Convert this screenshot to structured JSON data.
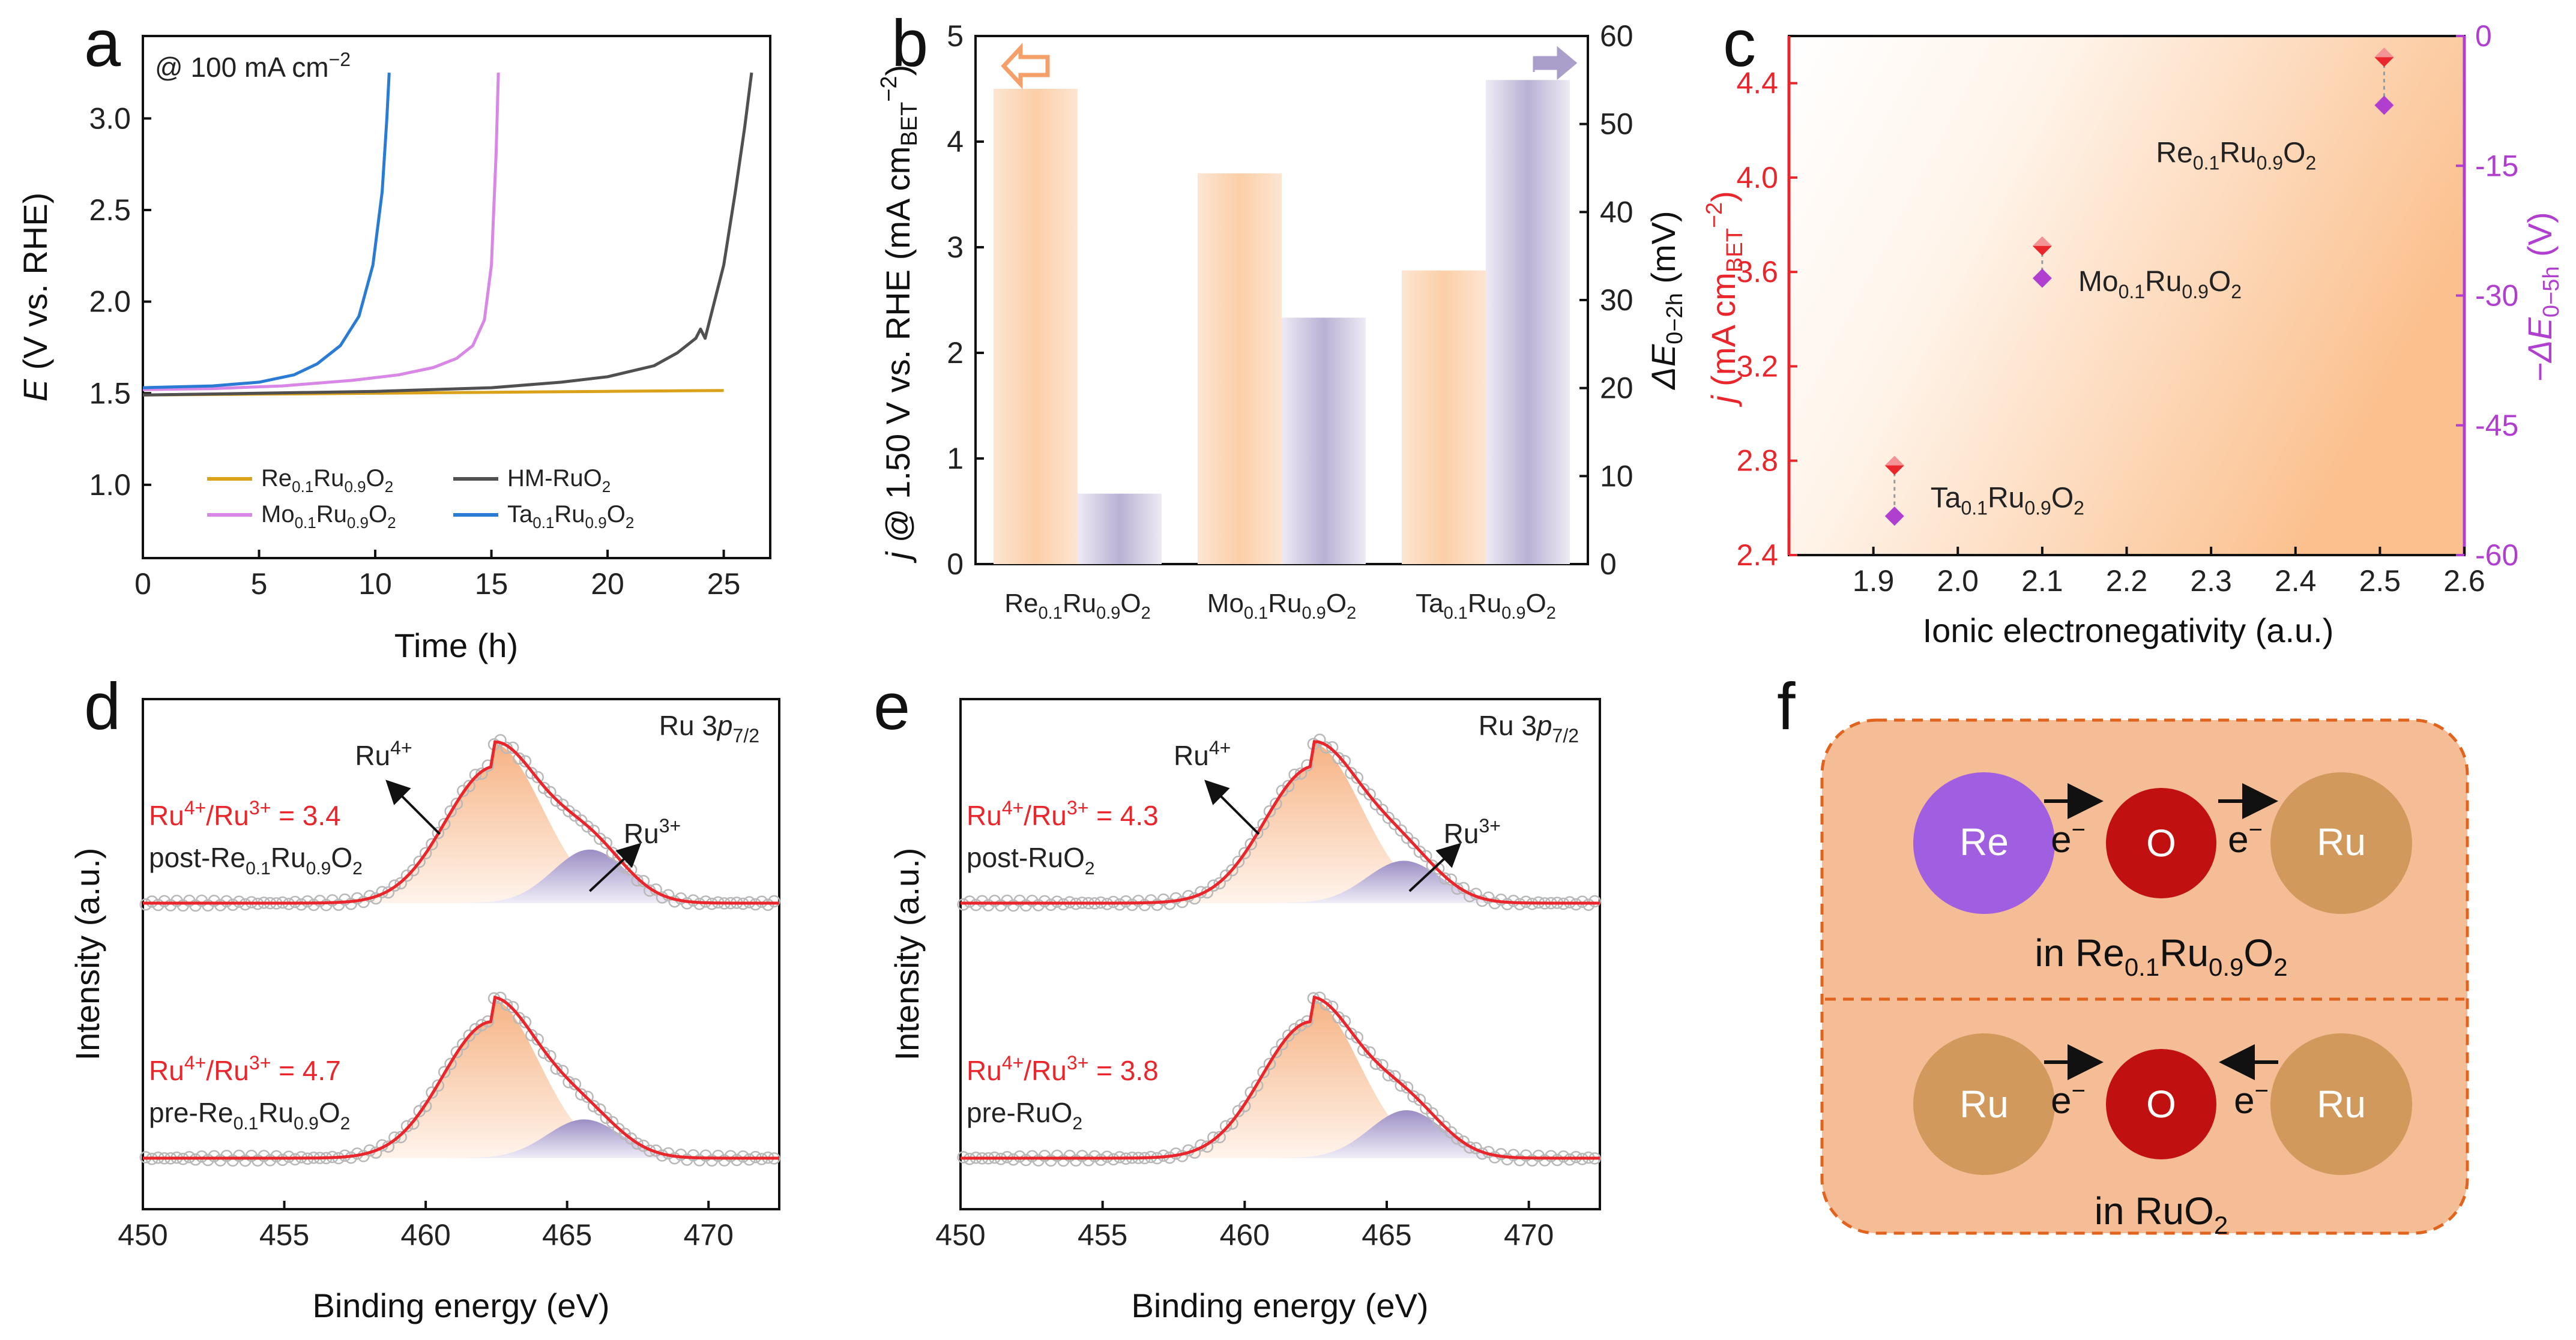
{
  "panel_labels": {
    "a": "a",
    "b": "b",
    "c": "c",
    "d": "d",
    "e": "e",
    "f": "f"
  },
  "chart_data": [
    {
      "id": "a",
      "type": "line",
      "annotation_main": "@ 100 mA cm",
      "annotation_sup": "−2",
      "xlabel": "Time (h)",
      "ylabel_italic": "E",
      "ylabel_rest": " (V vs. RHE)",
      "xlim": [
        0,
        27
      ],
      "ylim": [
        0.6,
        3.45
      ],
      "xticks": [
        0,
        5,
        10,
        15,
        20,
        25
      ],
      "yticks": [
        1.0,
        1.5,
        2.0,
        2.5,
        3.0
      ],
      "series": [
        {
          "name": "Re0.1Ru0.9O2",
          "label": [
            "Re",
            "0.1",
            "Ru",
            "0.9",
            "O",
            "2"
          ],
          "color": "#d9a21a",
          "x": [
            0,
            5,
            10,
            15,
            20,
            25
          ],
          "y": [
            1.49,
            1.495,
            1.5,
            1.505,
            1.51,
            1.515
          ]
        },
        {
          "name": "HM-RuO2",
          "label": [
            "HM-RuO",
            "",
            "",
            "",
            "",
            "2"
          ],
          "color": "#505050",
          "x": [
            0,
            5,
            10,
            15,
            18,
            20,
            22,
            23,
            23.8,
            24,
            24.2,
            24.5,
            25,
            25.5,
            25.9,
            26.2
          ],
          "y": [
            1.49,
            1.5,
            1.51,
            1.53,
            1.56,
            1.59,
            1.65,
            1.72,
            1.8,
            1.85,
            1.8,
            1.95,
            2.2,
            2.6,
            2.95,
            3.25
          ]
        },
        {
          "name": "Mo0.1Ru0.9O2",
          "label": [
            "Mo",
            "0.1",
            "Ru",
            "0.9",
            "O",
            "2"
          ],
          "color": "#d887e6",
          "x": [
            0,
            3,
            6,
            9,
            11,
            12.5,
            13.5,
            14.2,
            14.7,
            15.0,
            15.2,
            15.3
          ],
          "y": [
            1.52,
            1.525,
            1.54,
            1.57,
            1.6,
            1.64,
            1.69,
            1.76,
            1.9,
            2.2,
            2.8,
            3.25
          ]
        },
        {
          "name": "Ta0.1Ru0.9O2",
          "label": [
            "Ta",
            "0.1",
            "Ru",
            "0.9",
            "O",
            "2"
          ],
          "color": "#2a7bd4",
          "x": [
            0,
            3,
            5,
            6.5,
            7.5,
            8.5,
            9.3,
            9.9,
            10.3,
            10.5,
            10.6
          ],
          "y": [
            1.53,
            1.54,
            1.56,
            1.6,
            1.66,
            1.76,
            1.92,
            2.2,
            2.6,
            3.0,
            3.25
          ]
        }
      ]
    },
    {
      "id": "b",
      "type": "bar",
      "categories": [
        [
          "Re",
          "0.1",
          "Ru",
          "0.9",
          "O",
          "2"
        ],
        [
          "Mo",
          "0.1",
          "Ru",
          "0.9",
          "O",
          "2"
        ],
        [
          "Ta",
          "0.1",
          "Ru",
          "0.9",
          "O",
          "2"
        ]
      ],
      "series": [
        {
          "name": "j @ 1.50 V vs. RHE",
          "axis": "left",
          "values": [
            4.5,
            3.7,
            2.78
          ],
          "color": "#f6b88a"
        },
        {
          "name": "ΔE0−2h",
          "axis": "right",
          "values": [
            8,
            28,
            55
          ],
          "color": "#aaa0c8"
        }
      ],
      "ylim_left": [
        0,
        5
      ],
      "yticks_left": [
        0,
        1,
        2,
        3,
        4,
        5
      ],
      "ylim_right": [
        0,
        60
      ],
      "yticks_right": [
        0,
        10,
        20,
        30,
        40,
        50,
        60
      ],
      "ylabel_left": {
        "it": "j",
        "main": " @ 1.50 V vs. RHE (mA cm",
        "sub": "BET",
        "sup": "−2",
        "end": ")"
      },
      "ylabel_right": {
        "it": "ΔE",
        "sub": "0−2h",
        "end": " (mV)"
      }
    },
    {
      "id": "c",
      "type": "scatter",
      "xlabel": "Ionic electronegativity (a.u.)",
      "xlim": [
        1.8,
        2.6
      ],
      "xticks": [
        1.9,
        2.0,
        2.1,
        2.2,
        2.3,
        2.4,
        2.5,
        2.6
      ],
      "ylim_left": [
        2.4,
        4.6
      ],
      "yticks_left": [
        2.4,
        2.8,
        3.2,
        3.6,
        4.0,
        4.4
      ],
      "ylim_right": [
        -60,
        0
      ],
      "yticks_right": [
        -60,
        -45,
        -30,
        -15,
        0
      ],
      "ylabel_left": {
        "it": "j",
        "main": " (mA cm",
        "sub": "BET",
        "sup": "−2",
        "end": ")"
      },
      "ylabel_right": {
        "it": "−ΔE",
        "sub": "0−5h",
        "end": " (V)"
      },
      "points": [
        {
          "x": 1.925,
          "j": 2.78,
          "dE": -55.5,
          "label": [
            "Ta",
            "0.1",
            "Ru",
            "0.9",
            "O",
            "2"
          ]
        },
        {
          "x": 2.1,
          "j": 3.71,
          "dE": -28,
          "label": [
            "Mo",
            "0.1",
            "Ru",
            "0.9",
            "O",
            "2"
          ]
        },
        {
          "x": 2.505,
          "j": 4.51,
          "dE": -8,
          "label": [
            "Re",
            "0.1",
            "Ru",
            "0.9",
            "O",
            "2"
          ]
        }
      ],
      "colors": {
        "j": "#e8262b",
        "dE": "#b03fd0"
      }
    },
    {
      "id": "d",
      "type": "line",
      "title_main": "Ru 3",
      "title_it": "p",
      "title_sub": "7/2",
      "xlabel": "Binding energy (eV)",
      "ylabel": "Intensity (a.u.)",
      "xlim": [
        450,
        472.5
      ],
      "xticks": [
        450,
        455,
        460,
        465,
        470
      ],
      "peak_labels": {
        "ru4": "Ru",
        "ru4_sup": "4+",
        "ru3": "Ru",
        "ru3_sup": "3+"
      },
      "spectra": [
        {
          "ratio_label": "Ru",
          "ratio_sup1": "4+",
          "ratio_mid": "/Ru",
          "ratio_sup2": "3+",
          "ratio_value": " = 3.4",
          "sample": [
            "post-Re",
            "0.1",
            "Ru",
            "0.9",
            "O",
            "2"
          ],
          "ru4_center": 462.4,
          "ru3_center": 465.8,
          "ru4_width": 1.7,
          "ru3_width": 1.3,
          "ratio": 3.4
        },
        {
          "ratio_label": "Ru",
          "ratio_sup1": "4+",
          "ratio_mid": "/Ru",
          "ratio_sup2": "3+",
          "ratio_value": " = 4.7",
          "sample": [
            "pre-Re",
            "0.1",
            "Ru",
            "0.9",
            "O",
            "2"
          ],
          "ru4_center": 462.3,
          "ru3_center": 465.6,
          "ru4_width": 1.7,
          "ru3_width": 1.3,
          "ratio": 4.7
        }
      ]
    },
    {
      "id": "e",
      "type": "line",
      "title_main": "Ru 3",
      "title_it": "p",
      "title_sub": "7/2",
      "xlabel": "Binding energy (eV)",
      "ylabel": "Intensity (a.u.)",
      "xlim": [
        450,
        472.5
      ],
      "xticks": [
        450,
        455,
        460,
        465,
        470
      ],
      "peak_labels": {
        "ru4": "Ru",
        "ru4_sup": "4+",
        "ru3": "Ru",
        "ru3_sup": "3+"
      },
      "spectra": [
        {
          "ratio_label": "Ru",
          "ratio_sup1": "4+",
          "ratio_mid": "/Ru",
          "ratio_sup2": "3+",
          "ratio_value": " = 4.3",
          "sample": [
            "post-RuO",
            "",
            "",
            "",
            "",
            "2"
          ],
          "ru4_center": 462.4,
          "ru3_center": 465.6,
          "ru4_width": 1.7,
          "ru3_width": 1.3,
          "ratio": 4.3
        },
        {
          "ratio_label": "Ru",
          "ratio_sup1": "4+",
          "ratio_mid": "/Ru",
          "ratio_sup2": "3+",
          "ratio_value": " = 3.8",
          "sample": [
            "pre-RuO",
            "",
            "",
            "",
            "",
            "2"
          ],
          "ru4_center": 462.3,
          "ru3_center": 465.7,
          "ru4_width": 1.7,
          "ru3_width": 1.3,
          "ratio": 3.8
        }
      ]
    }
  ],
  "schematic": {
    "top": {
      "left_atom": "Re",
      "center_atom": "O",
      "right_atom": "Ru",
      "electron": "e",
      "electron_sup": "−",
      "caption": [
        "in Re",
        "0.1",
        "Ru",
        "0.9",
        "O",
        "2"
      ]
    },
    "bottom": {
      "left_atom": "Ru",
      "center_atom": "O",
      "right_atom": "Ru",
      "electron": "e",
      "electron_sup": "−",
      "caption": [
        "in RuO",
        "",
        "",
        "",
        "",
        "2"
      ]
    },
    "colors": {
      "re": "#a05ee0",
      "o": "#c11010",
      "ru": "#d19a5c",
      "panel": "#f4bd95",
      "border": "#e0641e"
    }
  }
}
